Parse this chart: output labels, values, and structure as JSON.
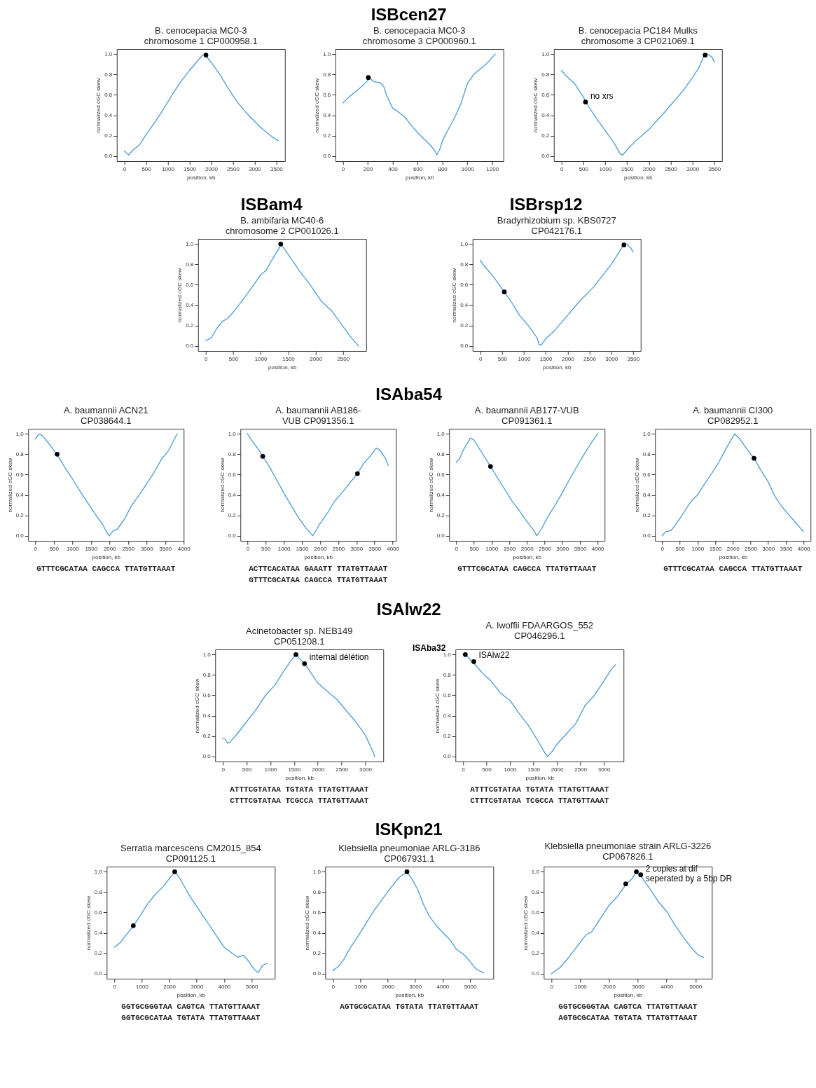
{
  "chart_data": [
    {
      "type": "other",
      "title": "ISBcen27"
    },
    {
      "type": "line",
      "subtitle": "B. cenocepacia MC0-3\nchromosome 1 CP000958.1",
      "xlabel": "position, kb",
      "ylabel": "normalized cGC skew",
      "xlim": [
        -175,
        3700
      ],
      "xticks": [
        0,
        500,
        1000,
        1500,
        2000,
        2500,
        3000,
        3500
      ],
      "ylim": [
        -0.05,
        1.05
      ],
      "yticks": [
        {
          "value": 0,
          "label": "0.0"
        },
        {
          "value": 0.2,
          "label": "0.2"
        },
        {
          "value": 0.4,
          "label": "0.4"
        },
        {
          "value": 0.6,
          "label": "0.6"
        },
        {
          "value": 0.8,
          "label": "0.8"
        },
        {
          "value": 1,
          "label": "1.0"
        }
      ],
      "series": [
        {
          "type": "line",
          "color": "#4a9ad6",
          "x": [
            0,
            50,
            100,
            200,
            350,
            500,
            700,
            900,
            1100,
            1300,
            1500,
            1700,
            1800,
            1850,
            2000,
            2200,
            2400,
            2600,
            2800,
            3000,
            3200,
            3400,
            3550
          ],
          "values": [
            0.05,
            0.03,
            0.01,
            0.06,
            0.11,
            0.21,
            0.33,
            0.46,
            0.6,
            0.73,
            0.84,
            0.94,
            0.99,
            1.0,
            0.92,
            0.8,
            0.66,
            0.53,
            0.43,
            0.34,
            0.26,
            0.19,
            0.15
          ]
        },
        {
          "type": "scatter",
          "color": "#000000",
          "x": [
            1880
          ],
          "values": [
            0.99
          ]
        }
      ]
    },
    {
      "type": "line",
      "subtitle": "B. cenocepacia MC0-3\nchromosome 3 CP000960.1",
      "xlabel": "position, kb",
      "ylabel": "normalized cGC skew",
      "xlim": [
        -60,
        1290
      ],
      "xticks": [
        0,
        200,
        400,
        600,
        800,
        1000,
        1200
      ],
      "ylim": [
        -0.05,
        1.05
      ],
      "yticks": [
        {
          "value": 0,
          "label": "0.0"
        },
        {
          "value": 0.2,
          "label": "0.2"
        },
        {
          "value": 0.4,
          "label": "0.4"
        },
        {
          "value": 0.6,
          "label": "0.6"
        },
        {
          "value": 0.8,
          "label": "0.8"
        },
        {
          "value": 1,
          "label": "1.0"
        }
      ],
      "series": [
        {
          "type": "line",
          "color": "#4a9ad6",
          "x": [
            0,
            50,
            100,
            150,
            200,
            210,
            250,
            300,
            330,
            350,
            400,
            450,
            500,
            550,
            600,
            650,
            700,
            740,
            755,
            780,
            800,
            850,
            900,
            950,
            1000,
            1050,
            1100,
            1150,
            1200,
            1225
          ],
          "values": [
            0.52,
            0.58,
            0.63,
            0.68,
            0.74,
            0.77,
            0.73,
            0.72,
            0.68,
            0.6,
            0.47,
            0.43,
            0.38,
            0.3,
            0.23,
            0.17,
            0.11,
            0.05,
            0.01,
            0.07,
            0.15,
            0.27,
            0.38,
            0.52,
            0.71,
            0.8,
            0.85,
            0.9,
            0.97,
            1.0
          ]
        },
        {
          "type": "scatter",
          "color": "#000000",
          "x": [
            205
          ],
          "values": [
            0.77
          ]
        }
      ]
    },
    {
      "type": "line",
      "subtitle": "B. cenocepacia PC184 Mulks\nchromosome 3 CP021069.1",
      "xlabel": "position, kb",
      "ylabel": "normalized cGC skew",
      "xlim": [
        -175,
        3675
      ],
      "xticks": [
        0,
        500,
        1000,
        1500,
        2000,
        2500,
        3000,
        3500
      ],
      "ylim": [
        -0.05,
        1.05
      ],
      "yticks": [
        {
          "value": 0,
          "label": "0.0"
        },
        {
          "value": 0.2,
          "label": "0.2"
        },
        {
          "value": 0.4,
          "label": "0.4"
        },
        {
          "value": 0.6,
          "label": "0.6"
        },
        {
          "value": 0.8,
          "label": "0.8"
        },
        {
          "value": 1,
          "label": "1.0"
        }
      ],
      "annotations": [
        {
          "text": "no xrs",
          "x": 550,
          "y": 0.53
        }
      ],
      "series": [
        {
          "type": "line",
          "color": "#4a9ad6",
          "x": [
            0,
            100,
            300,
            500,
            600,
            800,
            1000,
            1200,
            1350,
            1400,
            1500,
            1700,
            2000,
            2300,
            2600,
            2800,
            3000,
            3150,
            3250,
            3350,
            3450,
            3500
          ],
          "values": [
            0.84,
            0.79,
            0.71,
            0.58,
            0.5,
            0.37,
            0.25,
            0.13,
            0.02,
            0.01,
            0.06,
            0.15,
            0.26,
            0.4,
            0.55,
            0.65,
            0.77,
            0.87,
            0.97,
            1.0,
            0.97,
            0.92
          ]
        },
        {
          "type": "scatter",
          "color": "#000000",
          "x": [
            550,
            3290
          ],
          "values": [
            0.53,
            0.99
          ]
        }
      ]
    },
    {
      "type": "other",
      "title": "ISBam4"
    },
    {
      "type": "line",
      "subtitle": "B. ambifaria MC40-6\nchromosome 2 CP001026.1",
      "xlabel": "position, kb",
      "ylabel": "normalized cGC skew",
      "xlim": [
        -140,
        2920
      ],
      "xticks": [
        0,
        500,
        1000,
        1500,
        2000,
        2500
      ],
      "ylim": [
        -0.05,
        1.05
      ],
      "yticks": [
        {
          "value": 0,
          "label": "0.0"
        },
        {
          "value": 0.2,
          "label": "0.2"
        },
        {
          "value": 0.4,
          "label": "0.4"
        },
        {
          "value": 0.6,
          "label": "0.6"
        },
        {
          "value": 0.8,
          "label": "0.8"
        },
        {
          "value": 1,
          "label": "1.0"
        }
      ],
      "series": [
        {
          "type": "line",
          "color": "#4a9ad6",
          "x": [
            0,
            100,
            200,
            300,
            400,
            500,
            700,
            900,
            1000,
            1100,
            1200,
            1350,
            1370,
            1500,
            1700,
            1900,
            2100,
            2300,
            2500,
            2650,
            2750,
            2780
          ],
          "values": [
            0.05,
            0.08,
            0.17,
            0.24,
            0.27,
            0.33,
            0.47,
            0.62,
            0.7,
            0.74,
            0.84,
            0.97,
            1.0,
            0.9,
            0.74,
            0.6,
            0.44,
            0.34,
            0.19,
            0.08,
            0.02,
            0.0
          ]
        },
        {
          "type": "scatter",
          "color": "#000000",
          "x": [
            1365
          ],
          "values": [
            1.0
          ]
        }
      ]
    },
    {
      "type": "other",
      "title": "ISBrsp12"
    },
    {
      "type": "line",
      "subtitle": "Bradyrhizobium sp. KBS0727\nCP042176.1",
      "xlabel": "position, kb",
      "ylabel": "normalized cGC skew",
      "xlim": [
        -175,
        3675
      ],
      "xticks": [
        0,
        500,
        1000,
        1500,
        2000,
        2500,
        3000,
        3500
      ],
      "ylim": [
        -0.05,
        1.05
      ],
      "yticks": [
        {
          "value": 0,
          "label": "0.0"
        },
        {
          "value": 0.2,
          "label": "0.2"
        },
        {
          "value": 0.4,
          "label": "0.4"
        },
        {
          "value": 0.6,
          "label": "0.6"
        },
        {
          "value": 0.8,
          "label": "0.8"
        },
        {
          "value": 1,
          "label": "1.0"
        }
      ],
      "series": [
        {
          "type": "line",
          "color": "#4a9ad6",
          "x": [
            0,
            100,
            300,
            550,
            700,
            900,
            1100,
            1300,
            1350,
            1400,
            1500,
            1700,
            2000,
            2300,
            2600,
            2800,
            3000,
            3150,
            3250,
            3350,
            3450,
            3500
          ],
          "values": [
            0.84,
            0.78,
            0.68,
            0.53,
            0.44,
            0.3,
            0.2,
            0.08,
            0.01,
            0.01,
            0.07,
            0.15,
            0.3,
            0.45,
            0.58,
            0.69,
            0.8,
            0.9,
            0.97,
            1.0,
            0.96,
            0.92
          ]
        },
        {
          "type": "scatter",
          "color": "#000000",
          "x": [
            550,
            3290
          ],
          "values": [
            0.53,
            0.99
          ]
        }
      ]
    },
    {
      "type": "other",
      "title": "ISAba54"
    },
    {
      "type": "line",
      "subtitle": "A. baumannii ACN21\nCP038644.1",
      "xlabel": "position, kb",
      "ylabel": "normalized cGC skew",
      "xlim": [
        -190,
        4000
      ],
      "xticks": [
        0,
        500,
        1000,
        1500,
        2000,
        2500,
        3000,
        3500,
        4000
      ],
      "ylim": [
        -0.05,
        1.05
      ],
      "yticks": [
        {
          "value": 0,
          "label": "0.0"
        },
        {
          "value": 0.2,
          "label": "0.2"
        },
        {
          "value": 0.4,
          "label": "0.4"
        },
        {
          "value": 0.6,
          "label": "0.6"
        },
        {
          "value": 0.8,
          "label": "0.8"
        },
        {
          "value": 1,
          "label": "1.0"
        }
      ],
      "annotations": [
        "GTTTCGCATAA CAGCCA TTATGTTAAAT"
      ],
      "series": [
        {
          "type": "line",
          "color": "#4a9ad6",
          "x": [
            0,
            100,
            200,
            400,
            600,
            800,
            1000,
            1200,
            1400,
            1600,
            1800,
            1950,
            2000,
            2100,
            2200,
            2400,
            2600,
            2800,
            3000,
            3200,
            3400,
            3600,
            3750,
            3830
          ],
          "values": [
            0.95,
            1.0,
            0.98,
            0.89,
            0.79,
            0.67,
            0.56,
            0.44,
            0.33,
            0.22,
            0.12,
            0.02,
            0.0,
            0.05,
            0.06,
            0.16,
            0.3,
            0.4,
            0.51,
            0.62,
            0.75,
            0.84,
            0.95,
            1.0
          ]
        },
        {
          "type": "scatter",
          "color": "#000000",
          "x": [
            590
          ],
          "values": [
            0.8
          ]
        }
      ]
    },
    {
      "type": "line",
      "subtitle": "A. baumannii AB186-\nVUB CP091356.1",
      "xlabel": "position, kb",
      "ylabel": "normalized cGC skew",
      "xlim": [
        -195,
        4090
      ],
      "xticks": [
        0,
        500,
        1000,
        1500,
        2000,
        2500,
        3000,
        3500,
        4000
      ],
      "ylim": [
        -0.05,
        1.05
      ],
      "yticks": [
        {
          "value": 0,
          "label": "0.0"
        },
        {
          "value": 0.2,
          "label": "0.2"
        },
        {
          "value": 0.4,
          "label": "0.4"
        },
        {
          "value": 0.6,
          "label": "0.6"
        },
        {
          "value": 0.8,
          "label": "0.8"
        },
        {
          "value": 1,
          "label": "1.0"
        }
      ],
      "annotations": [
        "ACTTCACATAA GAAATT TTATGTTAAAT",
        "GTTTCGCATAA CAGCCA TTATGTTAAAT"
      ],
      "series": [
        {
          "type": "line",
          "color": "#4a9ad6",
          "x": [
            0,
            150,
            300,
            420,
            600,
            800,
            1000,
            1200,
            1400,
            1600,
            1750,
            1800,
            1900,
            2000,
            2200,
            2400,
            2600,
            2800,
            3030,
            3200,
            3400,
            3550,
            3650,
            3800,
            3880
          ],
          "values": [
            1.0,
            0.92,
            0.85,
            0.78,
            0.68,
            0.55,
            0.42,
            0.3,
            0.18,
            0.08,
            0.02,
            0.0,
            0.06,
            0.12,
            0.22,
            0.34,
            0.42,
            0.51,
            0.61,
            0.71,
            0.79,
            0.86,
            0.84,
            0.76,
            0.69
          ]
        },
        {
          "type": "scatter",
          "color": "#000000",
          "x": [
            420,
            3030
          ],
          "values": [
            0.78,
            0.61
          ]
        }
      ]
    },
    {
      "type": "line",
      "subtitle": "A. baumannii AB177-VUB\nCP091361.1",
      "xlabel": "position, kb",
      "ylabel": "normalized cGC skew",
      "xlim": [
        -200,
        4200
      ],
      "xticks": [
        0,
        500,
        1000,
        1500,
        2000,
        2500,
        3000,
        3500,
        4000
      ],
      "ylim": [
        -0.05,
        1.05
      ],
      "yticks": [
        {
          "value": 0,
          "label": "0.0"
        },
        {
          "value": 0.2,
          "label": "0.2"
        },
        {
          "value": 0.4,
          "label": "0.4"
        },
        {
          "value": 0.6,
          "label": "0.6"
        },
        {
          "value": 0.8,
          "label": "0.8"
        },
        {
          "value": 1,
          "label": "1.0"
        }
      ],
      "annotations": [
        "GTTTCGCATAA CAGCCA TTATGTTAAAT"
      ],
      "series": [
        {
          "type": "line",
          "color": "#4a9ad6",
          "x": [
            0,
            100,
            200,
            300,
            400,
            500,
            700,
            970,
            1200,
            1400,
            1600,
            1800,
            2000,
            2200,
            2280,
            2400,
            2600,
            2800,
            3000,
            3200,
            3400,
            3600,
            3800,
            4000
          ],
          "values": [
            0.72,
            0.76,
            0.84,
            0.9,
            0.96,
            0.94,
            0.83,
            0.68,
            0.55,
            0.44,
            0.33,
            0.24,
            0.14,
            0.05,
            0.0,
            0.06,
            0.19,
            0.3,
            0.42,
            0.55,
            0.67,
            0.79,
            0.9,
            1.0
          ]
        },
        {
          "type": "scatter",
          "color": "#000000",
          "x": [
            970
          ],
          "values": [
            0.68
          ]
        }
      ]
    },
    {
      "type": "line",
      "subtitle": "A. baumannii CI300\nCP082952.1",
      "xlabel": "position, kb",
      "ylabel": "normalized cGC skew",
      "xlim": [
        -200,
        4200
      ],
      "xticks": [
        0,
        500,
        1000,
        1500,
        2000,
        2500,
        3000,
        3500,
        4000
      ],
      "ylim": [
        -0.05,
        1.05
      ],
      "yticks": [
        {
          "value": 0,
          "label": "0.0"
        },
        {
          "value": 0.2,
          "label": "0.2"
        },
        {
          "value": 0.4,
          "label": "0.4"
        },
        {
          "value": 0.6,
          "label": "0.6"
        },
        {
          "value": 0.8,
          "label": "0.8"
        },
        {
          "value": 1,
          "label": "1.0"
        }
      ],
      "annotations": [
        "GTTTCGCATAA CAGCCA TTATGTTAAAT"
      ],
      "series": [
        {
          "type": "line",
          "color": "#4a9ad6",
          "x": [
            0,
            100,
            250,
            400,
            600,
            800,
            1000,
            1200,
            1400,
            1600,
            1800,
            2000,
            2050,
            2200,
            2400,
            2600,
            2800,
            3000,
            3200,
            3400,
            3600,
            3800,
            4000
          ],
          "values": [
            0.0,
            0.04,
            0.05,
            0.12,
            0.22,
            0.33,
            0.4,
            0.51,
            0.61,
            0.72,
            0.85,
            0.97,
            1.0,
            0.95,
            0.85,
            0.76,
            0.64,
            0.53,
            0.38,
            0.28,
            0.2,
            0.12,
            0.04
          ]
        },
        {
          "type": "scatter",
          "color": "#000000",
          "x": [
            2600
          ],
          "values": [
            0.76
          ]
        }
      ]
    },
    {
      "type": "other",
      "title": "ISAlw22"
    },
    {
      "type": "line",
      "subtitle": "Acinetobacter sp. NEB149\nCP051208.1",
      "xlabel": "position, kb",
      "ylabel": "normalized cGC skew",
      "xlim": [
        -160,
        3380
      ],
      "xticks": [
        0,
        500,
        1000,
        1500,
        2000,
        2500,
        3000
      ],
      "ylim": [
        -0.05,
        1.05
      ],
      "yticks": [
        {
          "value": 0,
          "label": "0.0"
        },
        {
          "value": 0.2,
          "label": "0.2"
        },
        {
          "value": 0.4,
          "label": "0.4"
        },
        {
          "value": 0.6,
          "label": "0.6"
        },
        {
          "value": 0.8,
          "label": "0.8"
        },
        {
          "value": 1,
          "label": "1.0"
        }
      ],
      "annotations": [
        {
          "text": "internal délétion",
          "x": 1720,
          "y": 0.91
        },
        "ATTTCGTATAA TGTATA TTATGTTAAAT",
        "CTTTCGTATAA TCGCCA TTATGTTAAAT"
      ],
      "series": [
        {
          "type": "line",
          "color": "#4a9ad6",
          "x": [
            0,
            50,
            100,
            150,
            300,
            500,
            700,
            900,
            1100,
            1300,
            1450,
            1540,
            1600,
            1720,
            1800,
            2000,
            2200,
            2400,
            2600,
            2800,
            3000,
            3150,
            3200
          ],
          "values": [
            0.18,
            0.17,
            0.13,
            0.14,
            0.22,
            0.34,
            0.46,
            0.6,
            0.7,
            0.85,
            0.95,
            1.0,
            0.97,
            0.91,
            0.86,
            0.72,
            0.64,
            0.56,
            0.45,
            0.34,
            0.21,
            0.06,
            0.0
          ]
        },
        {
          "type": "scatter",
          "color": "#000000",
          "x": [
            1540,
            1720
          ],
          "values": [
            1.0,
            0.91
          ]
        }
      ]
    },
    {
      "type": "line",
      "subtitle": "A. lwoffii FDAARGOS_552\nCP046296.1",
      "xlabel": "position, kb",
      "ylabel": "normalized cGC skew",
      "xlim": [
        -160,
        3420
      ],
      "xticks": [
        0,
        500,
        1000,
        1500,
        2000,
        2500,
        3000
      ],
      "ylim": [
        -0.05,
        1.05
      ],
      "yticks": [
        {
          "value": 0,
          "label": "0.0"
        },
        {
          "value": 0.2,
          "label": "0.2"
        },
        {
          "value": 0.4,
          "label": "0.4"
        },
        {
          "value": 0.6,
          "label": "0.6"
        },
        {
          "value": 0.8,
          "label": "0.8"
        },
        {
          "value": 1,
          "label": "1.0"
        }
      ],
      "annotations": [
        {
          "text": "ISAba32",
          "x": 50,
          "y": 1.0
        },
        {
          "text": "ISAlw22",
          "x": 230,
          "y": 0.93
        },
        "ATTTCGTATAA TGTATA TTATGTTAAAT",
        "CTTTCGTATAA TCGCCA TTATGTTAAAT"
      ],
      "series": [
        {
          "type": "line",
          "color": "#4a9ad6",
          "x": [
            0,
            50,
            200,
            300,
            450,
            600,
            800,
            1000,
            1200,
            1400,
            1600,
            1750,
            1800,
            1900,
            2000,
            2200,
            2400,
            2600,
            2800,
            3000,
            3150,
            3250
          ],
          "values": [
            1.0,
            1.0,
            0.93,
            0.88,
            0.8,
            0.74,
            0.62,
            0.55,
            0.42,
            0.3,
            0.15,
            0.03,
            0.0,
            0.05,
            0.12,
            0.22,
            0.32,
            0.5,
            0.6,
            0.74,
            0.85,
            0.9
          ]
        },
        {
          "type": "scatter",
          "color": "#000000",
          "x": [
            50,
            230
          ],
          "values": [
            1.0,
            0.93
          ]
        }
      ]
    },
    {
      "type": "other",
      "title": "ISKpn21"
    },
    {
      "type": "line",
      "subtitle": "Serratia marcescens CM2015_854\nCP091125.1",
      "xlabel": "position, kb",
      "ylabel": "normalized cGC skew",
      "xlim": [
        -280,
        5850
      ],
      "xticks": [
        0,
        1000,
        2000,
        3000,
        4000,
        5000
      ],
      "ylim": [
        -0.05,
        1.05
      ],
      "yticks": [
        {
          "value": 0,
          "label": "0.0"
        },
        {
          "value": 0.2,
          "label": "0.2"
        },
        {
          "value": 0.4,
          "label": "0.4"
        },
        {
          "value": 0.6,
          "label": "0.6"
        },
        {
          "value": 0.8,
          "label": "0.8"
        },
        {
          "value": 1,
          "label": "1.0"
        }
      ],
      "annotations": [
        "GGTGCGGGTAA CAGTCA TTATGTTAAAT",
        "GGTGCGCATAA TGTATA TTATGTTAAAT"
      ],
      "series": [
        {
          "type": "line",
          "color": "#4a9ad6",
          "x": [
            0,
            200,
            400,
            700,
            900,
            1200,
            1500,
            1800,
            2000,
            2200,
            2400,
            2600,
            2800,
            3000,
            3200,
            3400,
            3600,
            3800,
            4000,
            4200,
            4500,
            4700,
            4900,
            5100,
            5250,
            5400,
            5550
          ],
          "values": [
            0.26,
            0.3,
            0.37,
            0.47,
            0.55,
            0.68,
            0.78,
            0.86,
            0.93,
            1.0,
            0.93,
            0.83,
            0.74,
            0.66,
            0.58,
            0.5,
            0.42,
            0.34,
            0.26,
            0.22,
            0.16,
            0.18,
            0.12,
            0.04,
            0.01,
            0.08,
            0.1
          ]
        },
        {
          "type": "scatter",
          "color": "#000000",
          "x": [
            690,
            2200
          ],
          "values": [
            0.47,
            1.0
          ]
        }
      ]
    },
    {
      "type": "line",
      "subtitle": "Klebsiella pneumoniae ARLG-3186\nCP067931.1",
      "xlabel": "position, kb",
      "ylabel": "normalized cGC skew",
      "xlim": [
        -280,
        5850
      ],
      "xticks": [
        0,
        1000,
        2000,
        3000,
        4000,
        5000
      ],
      "ylim": [
        -0.05,
        1.05
      ],
      "yticks": [
        {
          "value": 0,
          "label": "0.0"
        },
        {
          "value": 0.2,
          "label": "0.2"
        },
        {
          "value": 0.4,
          "label": "0.4"
        },
        {
          "value": 0.6,
          "label": "0.6"
        },
        {
          "value": 0.8,
          "label": "0.8"
        },
        {
          "value": 1,
          "label": "1.0"
        }
      ],
      "annotations": [
        "AGTGCGCATAA TGTATA TTATGTTAAAT"
      ],
      "series": [
        {
          "type": "line",
          "color": "#4a9ad6",
          "x": [
            0,
            200,
            400,
            600,
            900,
            1200,
            1500,
            1800,
            2100,
            2400,
            2700,
            2900,
            3100,
            3300,
            3500,
            3800,
            4100,
            4300,
            4500,
            4800,
            5000,
            5200,
            5400,
            5500
          ],
          "values": [
            0.03,
            0.07,
            0.14,
            0.24,
            0.36,
            0.49,
            0.62,
            0.73,
            0.84,
            0.94,
            1.0,
            0.92,
            0.82,
            0.68,
            0.57,
            0.46,
            0.38,
            0.32,
            0.24,
            0.18,
            0.12,
            0.05,
            0.02,
            0.01
          ]
        },
        {
          "type": "scatter",
          "color": "#000000",
          "x": [
            2700
          ],
          "values": [
            1.0
          ]
        }
      ]
    },
    {
      "type": "line",
      "subtitle": "Klebsiella pneumoniae strain ARLG-3226\nCP067826.1",
      "xlabel": "position, kb",
      "ylabel": "normalized cGC skew",
      "xlim": [
        -265,
        5570
      ],
      "xticks": [
        0,
        1000,
        2000,
        3000,
        4000,
        5000
      ],
      "ylim": [
        -0.05,
        1.05
      ],
      "yticks": [
        {
          "value": 0,
          "label": "0.0"
        },
        {
          "value": 0.2,
          "label": "0.2"
        },
        {
          "value": 0.4,
          "label": "0.4"
        },
        {
          "value": 0.6,
          "label": "0.6"
        },
        {
          "value": 0.8,
          "label": "0.8"
        },
        {
          "value": 1,
          "label": "1.0"
        }
      ],
      "annotations": [
        {
          "text": "2 copies at dif seperated by a 5bp DR",
          "x": 3100,
          "y": 0.97
        },
        "GGTGCGGGTAA CAGTCA TTATGTTAAAT",
        "AGTGCGCATAA TGTATA TTATGTTAAAT"
      ],
      "series": [
        {
          "type": "line",
          "color": "#4a9ad6",
          "x": [
            0,
            300,
            600,
            900,
            1200,
            1400,
            1700,
            2000,
            2300,
            2600,
            2800,
            2950,
            3100,
            3400,
            3700,
            4000,
            4300,
            4600,
            4900,
            5100,
            5280
          ],
          "values": [
            0.0,
            0.06,
            0.16,
            0.27,
            0.38,
            0.41,
            0.54,
            0.67,
            0.76,
            0.88,
            0.93,
            1.0,
            0.96,
            0.84,
            0.71,
            0.61,
            0.47,
            0.35,
            0.24,
            0.18,
            0.16
          ]
        },
        {
          "type": "scatter",
          "color": "#000000",
          "x": [
            2580,
            2950,
            3100
          ],
          "values": [
            0.88,
            1.0,
            0.97
          ]
        }
      ]
    }
  ]
}
